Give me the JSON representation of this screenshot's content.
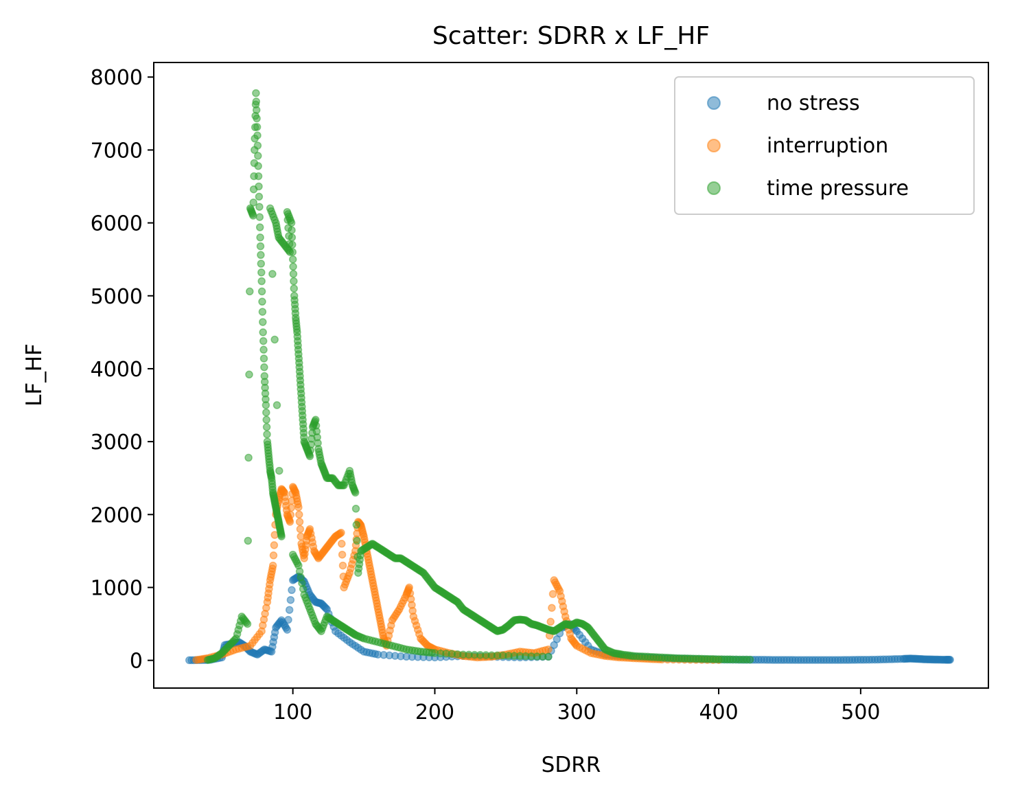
{
  "chart_data": {
    "type": "scatter",
    "title": "Scatter: SDRR x LF_HF",
    "xlabel": "SDRR",
    "ylabel": "LF_HF",
    "xlim": [
      2,
      590
    ],
    "ylim": [
      -380,
      8200
    ],
    "xticks": [
      100,
      200,
      300,
      400,
      500
    ],
    "yticks": [
      0,
      1000,
      2000,
      3000,
      4000,
      5000,
      6000,
      7000,
      8000
    ],
    "grid": false,
    "legend_position": "upper right",
    "marker_alpha": 0.5,
    "series": [
      {
        "name": "no stress",
        "color": "#1f77b4",
        "points": [
          [
            27,
            2
          ],
          [
            35,
            4
          ],
          [
            42,
            8
          ],
          [
            50,
            40
          ],
          [
            52,
            210
          ],
          [
            58,
            230
          ],
          [
            62,
            250
          ],
          [
            66,
            200
          ],
          [
            70,
            120
          ],
          [
            75,
            80
          ],
          [
            80,
            150
          ],
          [
            85,
            120
          ],
          [
            88,
            450
          ],
          [
            92,
            550
          ],
          [
            96,
            420
          ],
          [
            100,
            1100
          ],
          [
            104,
            1150
          ],
          [
            108,
            1080
          ],
          [
            112,
            900
          ],
          [
            116,
            800
          ],
          [
            120,
            780
          ],
          [
            124,
            700
          ],
          [
            130,
            400
          ],
          [
            140,
            250
          ],
          [
            150,
            120
          ],
          [
            160,
            80
          ],
          [
            180,
            50
          ],
          [
            200,
            40
          ],
          [
            220,
            60
          ],
          [
            240,
            50
          ],
          [
            260,
            40
          ],
          [
            280,
            50
          ],
          [
            290,
            450
          ],
          [
            295,
            500
          ],
          [
            300,
            400
          ],
          [
            310,
            150
          ],
          [
            320,
            80
          ],
          [
            330,
            60
          ],
          [
            340,
            50
          ],
          [
            350,
            40
          ],
          [
            360,
            30
          ],
          [
            370,
            25
          ],
          [
            380,
            20
          ],
          [
            390,
            15
          ],
          [
            400,
            12
          ],
          [
            410,
            10
          ],
          [
            420,
            8
          ],
          [
            430,
            8
          ],
          [
            440,
            6
          ],
          [
            450,
            6
          ],
          [
            460,
            5
          ],
          [
            470,
            5
          ],
          [
            480,
            5
          ],
          [
            490,
            6
          ],
          [
            500,
            8
          ],
          [
            510,
            10
          ],
          [
            520,
            15
          ],
          [
            530,
            20
          ],
          [
            535,
            25
          ],
          [
            540,
            20
          ],
          [
            545,
            15
          ],
          [
            550,
            12
          ],
          [
            555,
            10
          ],
          [
            560,
            8
          ],
          [
            563,
            8
          ]
        ]
      },
      {
        "name": "interruption",
        "color": "#ff7f0e",
        "points": [
          [
            32,
            5
          ],
          [
            40,
            30
          ],
          [
            50,
            80
          ],
          [
            60,
            150
          ],
          [
            70,
            200
          ],
          [
            78,
            400
          ],
          [
            82,
            800
          ],
          [
            84,
            1100
          ],
          [
            86,
            1300
          ],
          [
            88,
            2000
          ],
          [
            90,
            2200
          ],
          [
            92,
            2350
          ],
          [
            94,
            2300
          ],
          [
            96,
            2000
          ],
          [
            98,
            1900
          ],
          [
            100,
            2380
          ],
          [
            102,
            2300
          ],
          [
            104,
            2100
          ],
          [
            106,
            1600
          ],
          [
            108,
            1400
          ],
          [
            110,
            1700
          ],
          [
            112,
            1800
          ],
          [
            115,
            1500
          ],
          [
            118,
            1400
          ],
          [
            122,
            1500
          ],
          [
            126,
            1600
          ],
          [
            130,
            1700
          ],
          [
            134,
            1750
          ],
          [
            136,
            1000
          ],
          [
            140,
            1200
          ],
          [
            144,
            1500
          ],
          [
            146,
            1900
          ],
          [
            148,
            1850
          ],
          [
            150,
            1700
          ],
          [
            152,
            1500
          ],
          [
            154,
            1300
          ],
          [
            156,
            1100
          ],
          [
            158,
            900
          ],
          [
            160,
            700
          ],
          [
            162,
            500
          ],
          [
            164,
            300
          ],
          [
            166,
            200
          ],
          [
            170,
            550
          ],
          [
            175,
            700
          ],
          [
            180,
            900
          ],
          [
            182,
            1000
          ],
          [
            185,
            600
          ],
          [
            190,
            300
          ],
          [
            195,
            200
          ],
          [
            200,
            150
          ],
          [
            210,
            100
          ],
          [
            220,
            60
          ],
          [
            230,
            40
          ],
          [
            240,
            50
          ],
          [
            250,
            80
          ],
          [
            260,
            120
          ],
          [
            270,
            100
          ],
          [
            280,
            150
          ],
          [
            284,
            1100
          ],
          [
            288,
            950
          ],
          [
            292,
            600
          ],
          [
            296,
            300
          ],
          [
            300,
            200
          ],
          [
            310,
            100
          ],
          [
            320,
            60
          ],
          [
            330,
            40
          ],
          [
            340,
            30
          ],
          [
            350,
            20
          ],
          [
            360,
            12
          ],
          [
            380,
            8
          ],
          [
            400,
            5
          ]
        ]
      },
      {
        "name": "time pressure",
        "color": "#2ca02c",
        "points": [
          [
            40,
            5
          ],
          [
            45,
            30
          ],
          [
            50,
            100
          ],
          [
            55,
            200
          ],
          [
            60,
            300
          ],
          [
            64,
            600
          ],
          [
            68,
            500
          ],
          [
            70,
            6200
          ],
          [
            72,
            6100
          ],
          [
            73,
            7000
          ],
          [
            74,
            7780
          ],
          [
            75,
            7200
          ],
          [
            76,
            6500
          ],
          [
            77,
            5800
          ],
          [
            78,
            5200
          ],
          [
            79,
            4500
          ],
          [
            80,
            3900
          ],
          [
            81,
            3500
          ],
          [
            82,
            3000
          ],
          [
            83,
            2800
          ],
          [
            84,
            2600
          ],
          [
            85,
            2500
          ],
          [
            86,
            2300
          ],
          [
            87,
            2200
          ],
          [
            88,
            2100
          ],
          [
            89,
            2000
          ],
          [
            90,
            1900
          ],
          [
            91,
            1800
          ],
          [
            92,
            1700
          ],
          [
            84,
            6200
          ],
          [
            88,
            6000
          ],
          [
            90,
            5800
          ],
          [
            94,
            5700
          ],
          [
            98,
            5600
          ],
          [
            96,
            6150
          ],
          [
            99,
            6000
          ],
          [
            100,
            5500
          ],
          [
            101,
            5000
          ],
          [
            102,
            4700
          ],
          [
            103,
            4500
          ],
          [
            104,
            4200
          ],
          [
            105,
            3900
          ],
          [
            106,
            3600
          ],
          [
            107,
            3300
          ],
          [
            108,
            3000
          ],
          [
            110,
            2900
          ],
          [
            112,
            2800
          ],
          [
            114,
            3200
          ],
          [
            116,
            3300
          ],
          [
            118,
            2900
          ],
          [
            120,
            2700
          ],
          [
            122,
            2600
          ],
          [
            124,
            2500
          ],
          [
            128,
            2500
          ],
          [
            132,
            2400
          ],
          [
            136,
            2400
          ],
          [
            140,
            2600
          ],
          [
            142,
            2400
          ],
          [
            144,
            2300
          ],
          [
            146,
            1200
          ],
          [
            148,
            1500
          ],
          [
            152,
            1550
          ],
          [
            156,
            1600
          ],
          [
            160,
            1550
          ],
          [
            164,
            1500
          ],
          [
            168,
            1450
          ],
          [
            172,
            1400
          ],
          [
            176,
            1400
          ],
          [
            180,
            1350
          ],
          [
            184,
            1300
          ],
          [
            188,
            1250
          ],
          [
            192,
            1200
          ],
          [
            196,
            1100
          ],
          [
            200,
            1000
          ],
          [
            204,
            950
          ],
          [
            208,
            900
          ],
          [
            212,
            850
          ],
          [
            216,
            800
          ],
          [
            220,
            700
          ],
          [
            224,
            650
          ],
          [
            228,
            600
          ],
          [
            232,
            550
          ],
          [
            236,
            500
          ],
          [
            240,
            450
          ],
          [
            244,
            400
          ],
          [
            248,
            420
          ],
          [
            252,
            480
          ],
          [
            256,
            550
          ],
          [
            260,
            560
          ],
          [
            264,
            550
          ],
          [
            268,
            500
          ],
          [
            272,
            480
          ],
          [
            276,
            450
          ],
          [
            280,
            420
          ],
          [
            284,
            400
          ],
          [
            288,
            450
          ],
          [
            292,
            500
          ],
          [
            296,
            480
          ],
          [
            300,
            520
          ],
          [
            304,
            500
          ],
          [
            308,
            450
          ],
          [
            312,
            350
          ],
          [
            316,
            250
          ],
          [
            320,
            150
          ],
          [
            326,
            100
          ],
          [
            332,
            80
          ],
          [
            340,
            60
          ],
          [
            350,
            50
          ],
          [
            360,
            40
          ],
          [
            370,
            30
          ],
          [
            380,
            25
          ],
          [
            390,
            20
          ],
          [
            400,
            15
          ],
          [
            410,
            12
          ],
          [
            422,
            10
          ],
          [
            100,
            1450
          ],
          [
            104,
            1300
          ],
          [
            108,
            900
          ],
          [
            112,
            700
          ],
          [
            116,
            500
          ],
          [
            120,
            400
          ],
          [
            124,
            600
          ],
          [
            128,
            550
          ],
          [
            132,
            500
          ],
          [
            136,
            450
          ],
          [
            140,
            400
          ],
          [
            144,
            350
          ],
          [
            150,
            300
          ],
          [
            160,
            250
          ],
          [
            170,
            200
          ],
          [
            180,
            150
          ],
          [
            190,
            120
          ],
          [
            200,
            100
          ],
          [
            220,
            80
          ],
          [
            240,
            70
          ],
          [
            260,
            60
          ],
          [
            280,
            50
          ]
        ]
      }
    ]
  }
}
